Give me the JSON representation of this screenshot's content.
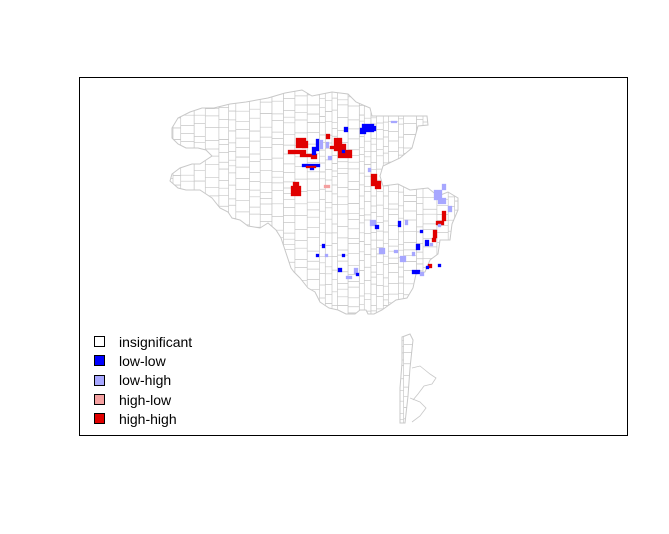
{
  "legend": {
    "items": [
      {
        "label": "insignificant",
        "color": "#ffffff"
      },
      {
        "label": "low-low",
        "color": "#0000ff"
      },
      {
        "label": "low-high",
        "color": "#a7a7ff"
      },
      {
        "label": "high-low",
        "color": "#f4a0a0"
      },
      {
        "label": "high-high",
        "color": "#e00000"
      }
    ]
  },
  "colors": {
    "tract_border": "#c8c8c8",
    "frame": "#000000"
  }
}
